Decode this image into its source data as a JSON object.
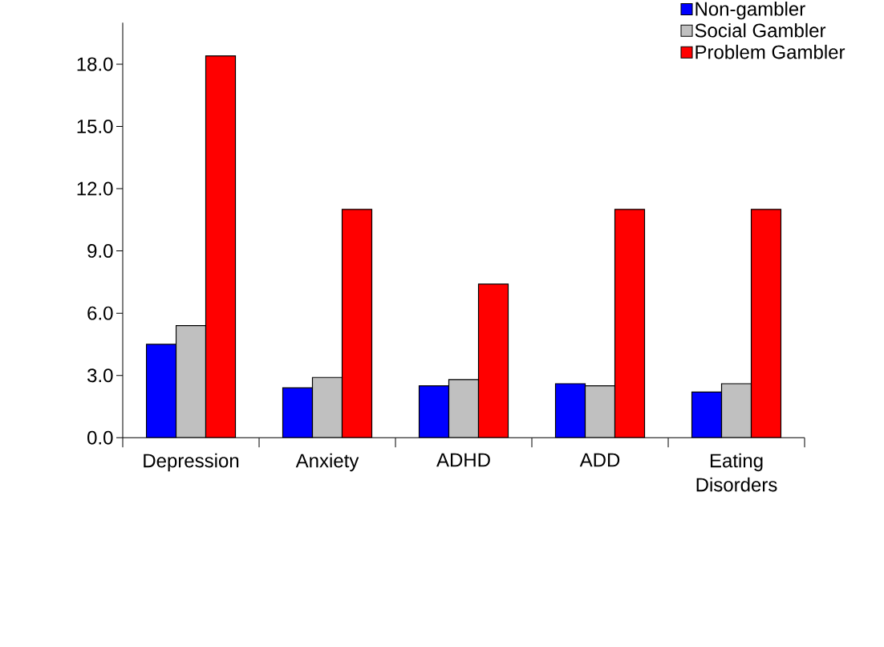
{
  "chart_data": {
    "type": "bar",
    "categories": [
      "Depression",
      "Anxiety",
      "ADHD",
      "ADD",
      "Eating Disorders"
    ],
    "series": [
      {
        "name": "Non-gambler",
        "color": "#0000ff",
        "values": [
          4.5,
          2.4,
          2.5,
          2.6,
          2.2
        ]
      },
      {
        "name": "Social Gambler",
        "color": "#c0c0c0",
        "values": [
          5.4,
          2.9,
          2.8,
          2.5,
          2.6
        ]
      },
      {
        "name": "Problem Gambler",
        "color": "#ff0000",
        "values": [
          18.4,
          11.0,
          7.4,
          11.0,
          11.0
        ]
      }
    ],
    "ylim": [
      0,
      20
    ],
    "yticks": [
      {
        "value": 0,
        "label": "0.0"
      },
      {
        "value": 3,
        "label": "3.0"
      },
      {
        "value": 6,
        "label": "6.0"
      },
      {
        "value": 9,
        "label": "9.0"
      },
      {
        "value": 12,
        "label": "12.0"
      },
      {
        "value": 15,
        "label": "15.0"
      },
      {
        "value": 18,
        "label": "18.0"
      }
    ],
    "legend": "top right",
    "grid": false
  }
}
